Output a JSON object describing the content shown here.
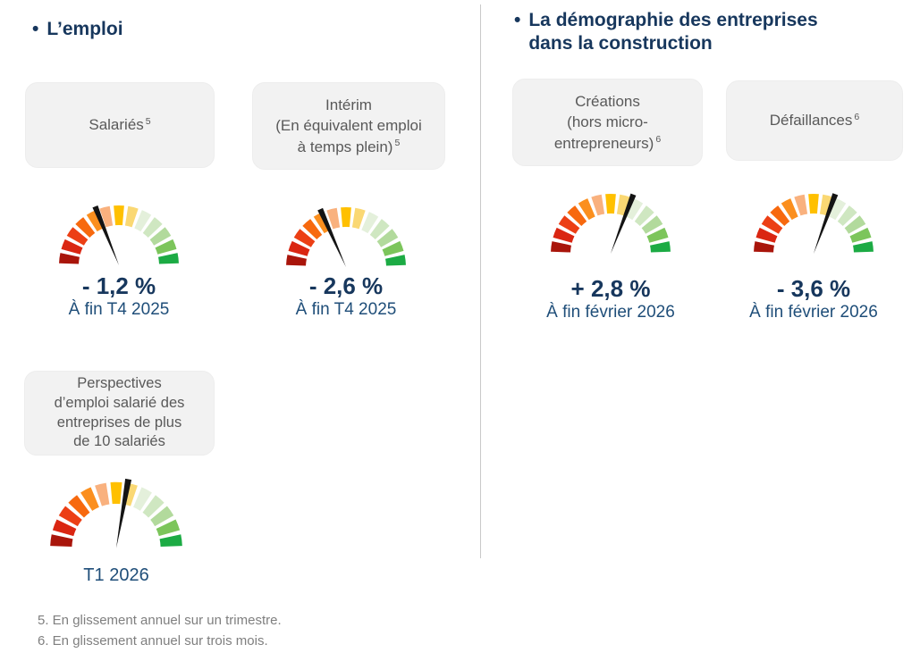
{
  "sections": {
    "emploi": {
      "bullet": "•",
      "title": "L’emploi",
      "cards": {
        "salaries": {
          "label": "Salariés",
          "sup": "5"
        },
        "interim": {
          "lines": [
            "Intérim",
            "(En équivalent emploi",
            "à temps plein)"
          ],
          "sup": "5"
        },
        "perspectives": {
          "lines": [
            "Perspectives",
            "d’emploi salarié des",
            "entreprises de plus",
            "de 10 salariés"
          ]
        }
      }
    },
    "demographie": {
      "bullet": "•",
      "title": "La démographie des entreprises dans la construction",
      "cards": {
        "creations": {
          "lines": [
            "Créations",
            "(hors micro-",
            "entrepreneurs)"
          ],
          "sup": "6"
        },
        "defaillances": {
          "label": "Défaillances",
          "sup": "6"
        }
      }
    }
  },
  "gauge": {
    "segments": 13,
    "arc_degrees": 180,
    "segment_colors": [
      "#A9150B",
      "#DA2612",
      "#EC3F15",
      "#F7690E",
      "#FB8F1E",
      "#F9B17E",
      "#FFC000",
      "#FAD873",
      "#E4F0DB",
      "#CFE7C1",
      "#B2DA9C",
      "#7CC55B",
      "#1CAB44"
    ],
    "needle_color": "#141414",
    "scale_note": "qualitative semicircular scale from red (unfavourable) to green (favourable)"
  },
  "chart_data": [
    {
      "id": "salaries",
      "type": "gauge",
      "title": "Salariés",
      "value": -1.2,
      "unit": "%",
      "value_label": "- 1,2 %",
      "period": "À fin T4 2025",
      "needle_angle_deg": -22
    },
    {
      "id": "interim",
      "type": "gauge",
      "title": "Intérim (En équivalent emploi à temps plein)",
      "value": -2.6,
      "unit": "%",
      "value_label": "- 2,6 %",
      "period": "À fin T4 2025",
      "needle_angle_deg": -24
    },
    {
      "id": "creations",
      "type": "gauge",
      "title": "Créations (hors micro-entrepreneurs)",
      "value": 2.8,
      "unit": "%",
      "value_label": "+ 2,8 %",
      "period": "À fin février 2026",
      "needle_angle_deg": 21
    },
    {
      "id": "defaillances",
      "type": "gauge",
      "title": "Défaillances",
      "value": -3.6,
      "unit": "%",
      "value_label": "- 3,6 %",
      "period": "À fin février 2026",
      "needle_angle_deg": 20
    },
    {
      "id": "perspectives",
      "type": "gauge",
      "title": "Perspectives d’emploi salarié des entreprises de plus de 10 salariés",
      "value": null,
      "unit": "%",
      "value_label": "",
      "period": "T1 2026",
      "needle_angle_deg": 10
    }
  ],
  "footnotes": [
    "5. En glissement annuel sur un trimestre.",
    "6. En glissement annuel sur trois mois."
  ],
  "colors": {
    "header_navy": "#17375D",
    "value_navy": "#17375D",
    "period_navy": "#1F4E79",
    "card_bg": "#F2F2F2",
    "card_text": "#595959",
    "footnote_gray": "#7F7F7F",
    "divider_gray": "#C9C9C9"
  }
}
